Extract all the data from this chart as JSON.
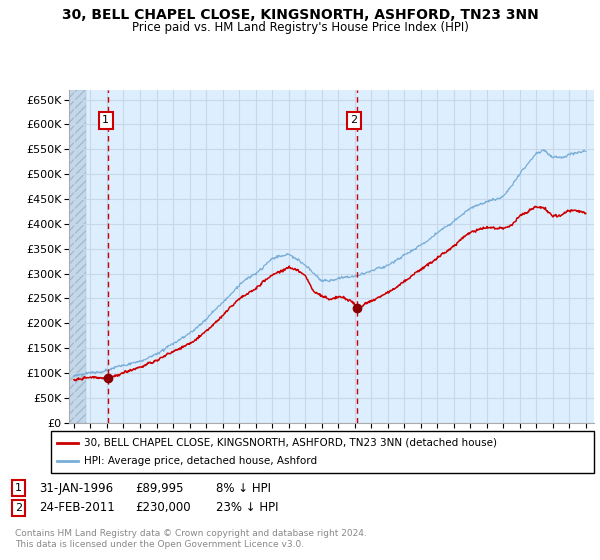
{
  "title": "30, BELL CHAPEL CLOSE, KINGSNORTH, ASHFORD, TN23 3NN",
  "subtitle": "Price paid vs. HM Land Registry's House Price Index (HPI)",
  "ylim": [
    0,
    670000
  ],
  "xlim_start": 1993.7,
  "xlim_end": 2025.5,
  "bg_color": "#ddeeff",
  "grid_color": "#c8d8e8",
  "hpi_color": "#7aaed6",
  "price_color": "#cc0000",
  "sale1_year": 1996.08,
  "sale1_price": 89995,
  "sale2_year": 2011.12,
  "sale2_price": 230000,
  "legend_price_label": "30, BELL CHAPEL CLOSE, KINGSNORTH, ASHFORD, TN23 3NN (detached house)",
  "legend_hpi_label": "HPI: Average price, detached house, Ashford",
  "footer": "Contains HM Land Registry data © Crown copyright and database right 2024.\nThis data is licensed under the Open Government Licence v3.0.",
  "copyright_color": "#888888",
  "hpi_anchors_x": [
    1994.0,
    1995.0,
    1996.0,
    1997.0,
    1998.0,
    1999.0,
    2000.0,
    2001.0,
    2002.0,
    2003.0,
    2004.0,
    2005.0,
    2006.0,
    2007.0,
    2008.0,
    2008.5,
    2009.0,
    2009.5,
    2010.0,
    2010.5,
    2011.0,
    2011.5,
    2012.0,
    2013.0,
    2014.0,
    2015.0,
    2016.0,
    2017.0,
    2018.0,
    2019.0,
    2020.0,
    2020.5,
    2021.0,
    2021.5,
    2022.0,
    2022.5,
    2023.0,
    2023.5,
    2024.0,
    2024.5,
    2025.0
  ],
  "hpi_anchors_y": [
    93000,
    98000,
    103000,
    112000,
    120000,
    135000,
    155000,
    175000,
    205000,
    240000,
    275000,
    300000,
    330000,
    340000,
    320000,
    305000,
    290000,
    290000,
    295000,
    300000,
    300000,
    305000,
    310000,
    320000,
    340000,
    360000,
    385000,
    405000,
    430000,
    445000,
    455000,
    475000,
    500000,
    520000,
    540000,
    545000,
    530000,
    530000,
    540000,
    545000,
    550000
  ],
  "price_anchors_x": [
    1994.0,
    1995.0,
    1996.0,
    1997.0,
    1998.0,
    1999.0,
    2000.0,
    2001.0,
    2002.0,
    2003.0,
    2004.0,
    2005.0,
    2006.0,
    2007.0,
    2007.5,
    2008.0,
    2008.5,
    2009.0,
    2009.5,
    2010.0,
    2010.5,
    2011.0,
    2011.15,
    2011.5,
    2012.0,
    2013.0,
    2014.0,
    2015.0,
    2016.0,
    2017.0,
    2018.0,
    2019.0,
    2019.5,
    2020.0,
    2020.5,
    2021.0,
    2021.5,
    2022.0,
    2022.5,
    2023.0,
    2023.5,
    2024.0,
    2024.5,
    2025.0
  ],
  "price_anchors_y": [
    88000,
    92000,
    90000,
    100000,
    110000,
    122000,
    140000,
    158000,
    185000,
    215000,
    248000,
    268000,
    295000,
    310000,
    305000,
    295000,
    265000,
    255000,
    250000,
    255000,
    250000,
    240000,
    230000,
    235000,
    242000,
    260000,
    280000,
    305000,
    330000,
    355000,
    385000,
    395000,
    395000,
    395000,
    400000,
    420000,
    430000,
    440000,
    435000,
    420000,
    420000,
    430000,
    430000,
    425000
  ]
}
